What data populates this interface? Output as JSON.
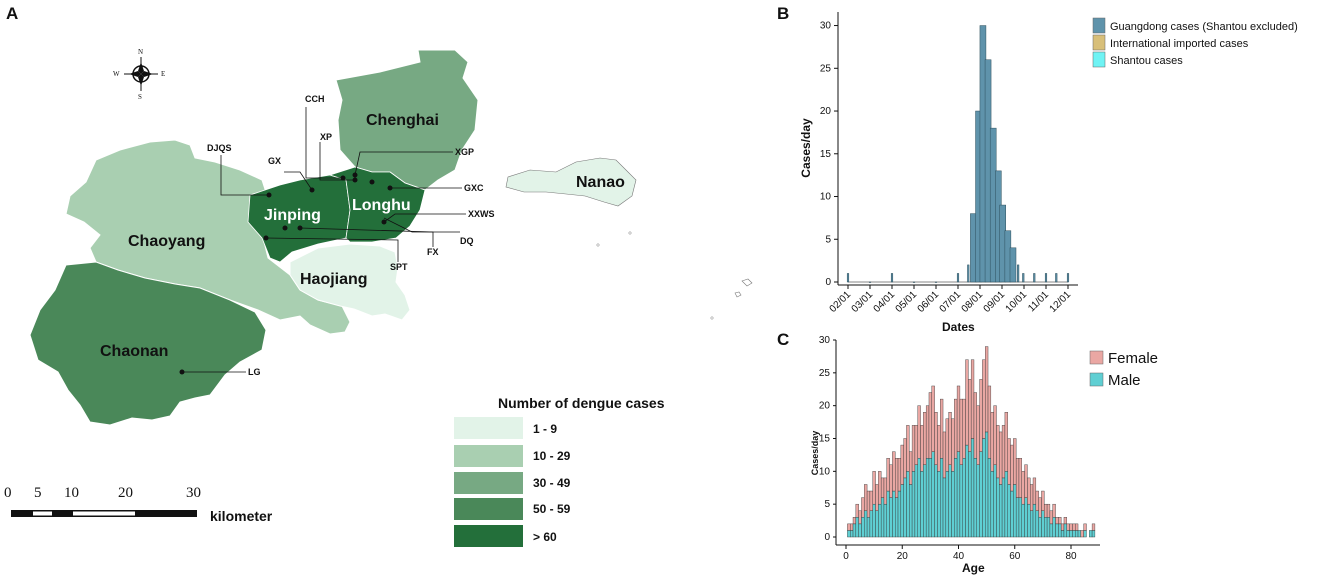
{
  "panel_letters": {
    "a": "A",
    "b": "B",
    "c": "C"
  },
  "map": {
    "compass": {
      "n": "N",
      "s": "S",
      "w": "W",
      "e": "E"
    },
    "regions": {
      "chenghai": "Chenghai",
      "nanao": "Nanao",
      "jinping": "Jinping",
      "longhu": "Longhu",
      "chaoyang": "Chaoyang",
      "haojiang": "Haojiang",
      "chaonan": "Chaonan"
    },
    "sites": {
      "cch": "CCH",
      "xp": "XP",
      "djqs": "DJQS",
      "gx": "GX",
      "xgp": "XGP",
      "gxc": "GXC",
      "xxws": "XXWS",
      "dq": "DQ",
      "fx": "FX",
      "spt": "SPT",
      "lg": "LG"
    },
    "legend": {
      "title": "Number of dengue cases",
      "items": [
        {
          "label": "1 - 9",
          "color": "#e2f3e8"
        },
        {
          "label": "10 - 29",
          "color": "#a9cfb1"
        },
        {
          "label": "30 - 49",
          "color": "#77a983"
        },
        {
          "label": "50 - 59",
          "color": "#4a8859"
        },
        {
          "label": "> 60",
          "color": "#236f3a"
        }
      ]
    },
    "scale_bar": {
      "ticks": [
        "0",
        "5",
        "10",
        "20",
        "30"
      ],
      "unit": "kilometer"
    }
  },
  "chart_data": [
    {
      "panel": "B",
      "type": "bar",
      "ylabel": "Cases/day",
      "xlabel": "Dates",
      "ylim": [
        0,
        31
      ],
      "yticks": [
        0,
        5,
        10,
        15,
        20,
        25,
        30
      ],
      "xticks": [
        "02/01",
        "03/01",
        "04/01",
        "05/01",
        "06/01",
        "07/01",
        "08/01",
        "09/01",
        "10/01",
        "11/01",
        "12/01"
      ],
      "legend": [
        {
          "name": "Guangdong cases (Shantou excluded)",
          "color": "#5f93ab"
        },
        {
          "name": "International imported cases",
          "color": "#d8bf79"
        },
        {
          "name": "Shantou cases",
          "color": "#6ff3f4"
        }
      ],
      "series": [
        {
          "name": "Guangdong cases (Shantou excluded)",
          "x": [
            "02/01",
            "03/01",
            "04/01",
            "05/01",
            "06/01",
            "07/01",
            "07/15",
            "07/22",
            "07/29",
            "08/05",
            "08/12",
            "08/19",
            "08/26",
            "09/02",
            "09/09",
            "09/16",
            "09/23",
            "09/30",
            "10/15",
            "11/01",
            "11/15",
            "12/01"
          ],
          "values": [
            1,
            0,
            1,
            0,
            0,
            1,
            2,
            8,
            20,
            30,
            26,
            18,
            13,
            9,
            6,
            4,
            2,
            1,
            1,
            1,
            1,
            1
          ]
        }
      ]
    },
    {
      "panel": "C",
      "type": "bar",
      "stacked": true,
      "ylabel": "Cases/day",
      "xlabel": "Age",
      "xlim": [
        0,
        90
      ],
      "ylim": [
        0,
        30
      ],
      "xticks": [
        0,
        20,
        40,
        60,
        80
      ],
      "yticks": [
        0,
        5,
        10,
        15,
        20,
        25,
        30
      ],
      "legend": [
        {
          "name": "Female",
          "color": "#eaa7a3"
        },
        {
          "name": "Male",
          "color": "#5fcfd3"
        }
      ],
      "categories": [
        1,
        2,
        3,
        4,
        5,
        6,
        7,
        8,
        9,
        10,
        11,
        12,
        13,
        14,
        15,
        16,
        17,
        18,
        19,
        20,
        21,
        22,
        23,
        24,
        25,
        26,
        27,
        28,
        29,
        30,
        31,
        32,
        33,
        34,
        35,
        36,
        37,
        38,
        39,
        40,
        41,
        42,
        43,
        44,
        45,
        46,
        47,
        48,
        49,
        50,
        51,
        52,
        53,
        54,
        55,
        56,
        57,
        58,
        59,
        60,
        61,
        62,
        63,
        64,
        65,
        66,
        67,
        68,
        69,
        70,
        71,
        72,
        73,
        74,
        75,
        76,
        77,
        78,
        79,
        80,
        81,
        82,
        83,
        84,
        85,
        86,
        87,
        88
      ],
      "series": [
        {
          "name": "Male",
          "values": [
            1,
            1,
            2,
            3,
            2,
            3,
            4,
            3,
            4,
            5,
            4,
            5,
            6,
            5,
            7,
            6,
            7,
            6,
            7,
            8,
            9,
            10,
            8,
            10,
            11,
            12,
            10,
            11,
            12,
            12,
            13,
            11,
            10,
            12,
            9,
            10,
            11,
            10,
            12,
            13,
            11,
            12,
            14,
            13,
            15,
            12,
            11,
            13,
            15,
            16,
            12,
            10,
            11,
            9,
            8,
            9,
            10,
            8,
            7,
            8,
            6,
            6,
            5,
            6,
            5,
            4,
            5,
            4,
            3,
            4,
            3,
            3,
            2,
            3,
            2,
            2,
            1,
            2,
            1,
            1,
            1,
            1,
            1,
            0,
            1,
            0,
            1,
            1
          ]
        },
        {
          "name": "Female",
          "values": [
            1,
            1,
            1,
            2,
            2,
            3,
            4,
            4,
            3,
            5,
            4,
            5,
            3,
            4,
            5,
            5,
            6,
            6,
            5,
            6,
            6,
            7,
            5,
            7,
            6,
            8,
            7,
            8,
            8,
            10,
            10,
            8,
            7,
            9,
            7,
            8,
            8,
            8,
            9,
            10,
            10,
            9,
            13,
            11,
            12,
            10,
            9,
            11,
            12,
            13,
            11,
            9,
            9,
            8,
            8,
            8,
            9,
            7,
            7,
            7,
            6,
            6,
            5,
            5,
            4,
            4,
            4,
            3,
            3,
            3,
            2,
            2,
            2,
            2,
            1,
            1,
            1,
            1,
            1,
            1,
            1,
            1,
            0,
            1,
            1,
            0,
            0,
            1
          ]
        }
      ]
    }
  ]
}
